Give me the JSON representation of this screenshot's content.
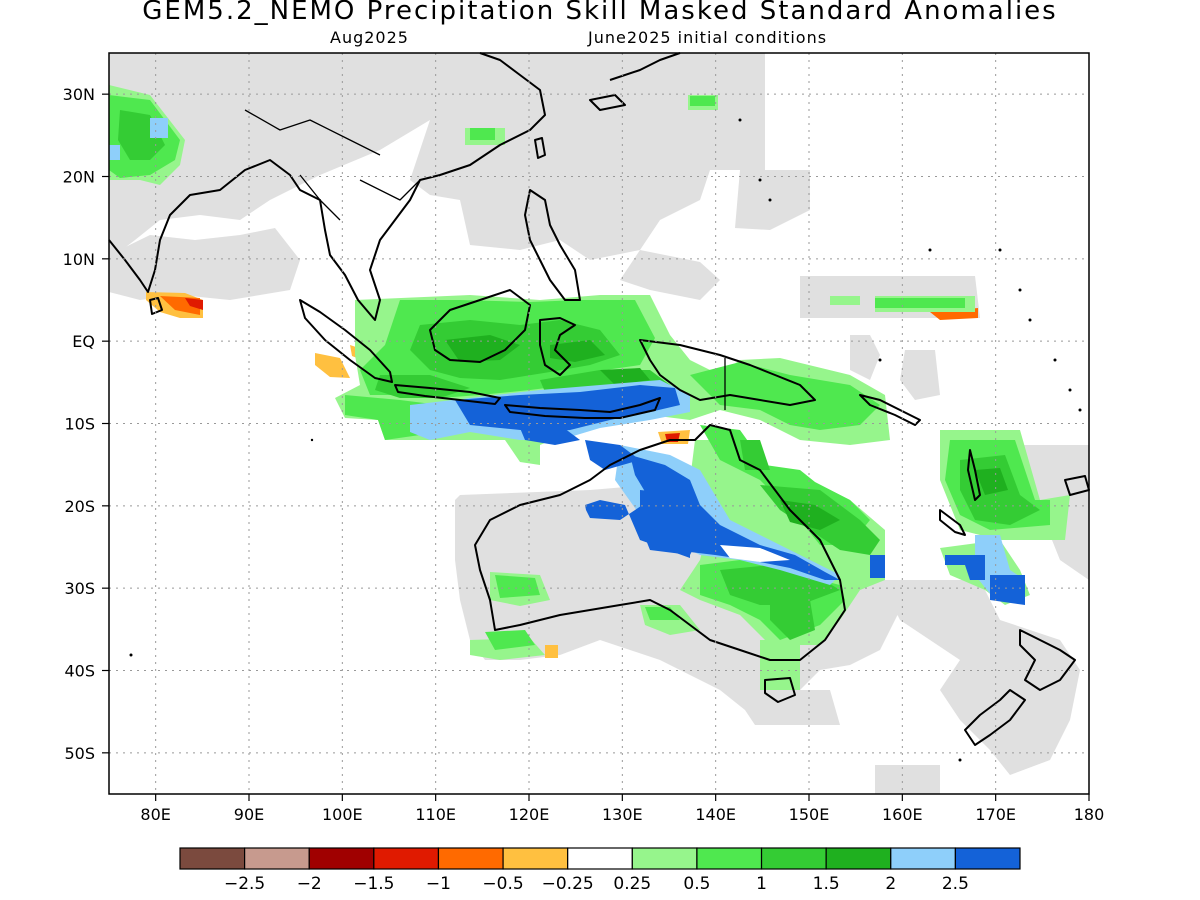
{
  "title": "GEM5.2_NEMO Precipitation Skill Masked Standard Anomalies",
  "subtitle_left": "Aug2025",
  "subtitle_right": "June2025 initial conditions",
  "map": {
    "lon_range": [
      75,
      180
    ],
    "lat_range": [
      -55,
      35
    ],
    "lat_ticks": [
      {
        "value": 30,
        "label": "30N"
      },
      {
        "value": 20,
        "label": "20N"
      },
      {
        "value": 10,
        "label": "10N"
      },
      {
        "value": 0,
        "label": "EQ"
      },
      {
        "value": -10,
        "label": "10S"
      },
      {
        "value": -20,
        "label": "20S"
      },
      {
        "value": -30,
        "label": "30S"
      },
      {
        "value": -40,
        "label": "40S"
      },
      {
        "value": -50,
        "label": "50S"
      }
    ],
    "lon_ticks": [
      {
        "value": 80,
        "label": "80E"
      },
      {
        "value": 90,
        "label": "90E"
      },
      {
        "value": 100,
        "label": "100E"
      },
      {
        "value": 110,
        "label": "110E"
      },
      {
        "value": 120,
        "label": "120E"
      },
      {
        "value": 130,
        "label": "130E"
      },
      {
        "value": 140,
        "label": "140E"
      },
      {
        "value": 150,
        "label": "150E"
      },
      {
        "value": 160,
        "label": "160E"
      },
      {
        "value": 170,
        "label": "170E"
      },
      {
        "value": 180,
        "label": "180"
      }
    ],
    "grid": true
  },
  "colorbar": {
    "colors": [
      "#7b4a3e",
      "#c79a8e",
      "#a00000",
      "#e01a00",
      "#ff6a00",
      "#ffc040",
      "#ffffff",
      "#96f58c",
      "#4fe84f",
      "#34cc34",
      "#1fb01f",
      "#8ecffa",
      "#1462d8"
    ],
    "labels": [
      "-2.5",
      "-2",
      "-1.5",
      "-1",
      "-0.5",
      "-0.25",
      "0.25",
      "0.5",
      "1",
      "1.5",
      "2",
      "2.5"
    ]
  }
}
